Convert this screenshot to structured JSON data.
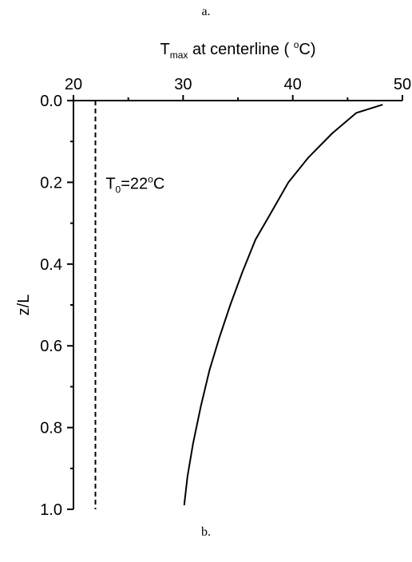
{
  "captions": {
    "top": "a.",
    "bottom": "b."
  },
  "chart_data": {
    "type": "line",
    "title": "",
    "xlabel": {
      "prefix": "T",
      "subscript": "max",
      "suffix": " at centerline ( ",
      "degree": "o",
      "unit": "C)"
    },
    "ylabel": "z/L",
    "xlim": [
      20,
      50
    ],
    "ylim": [
      0.0,
      1.0
    ],
    "y_inverted": true,
    "x_axis_position": "top",
    "x_ticks": [
      "20",
      "30",
      "40",
      "50"
    ],
    "y_ticks": [
      "0.0",
      "0.2",
      "0.4",
      "0.6",
      "0.8",
      "1.0"
    ],
    "grid": false,
    "series": [
      {
        "style": "solid",
        "color": "#000000",
        "points": [
          [
            48.2,
            0.01
          ],
          [
            45.8,
            0.03
          ],
          [
            43.6,
            0.08
          ],
          [
            41.4,
            0.14
          ],
          [
            39.6,
            0.2
          ],
          [
            37.9,
            0.28
          ],
          [
            36.6,
            0.34
          ],
          [
            35.4,
            0.42
          ],
          [
            34.3,
            0.5
          ],
          [
            33.3,
            0.58
          ],
          [
            32.4,
            0.66
          ],
          [
            31.6,
            0.75
          ],
          [
            30.9,
            0.84
          ],
          [
            30.4,
            0.92
          ],
          [
            30.1,
            0.99
          ]
        ]
      },
      {
        "style": "dashed",
        "color": "#000000",
        "points": [
          [
            22,
            0.0
          ],
          [
            22,
            1.0
          ]
        ]
      }
    ],
    "annotation": {
      "prefix": "T",
      "subscript": "0",
      "middle": "=22",
      "degree": "o",
      "unit": "C",
      "x": 22.5,
      "y": 0.2
    }
  }
}
